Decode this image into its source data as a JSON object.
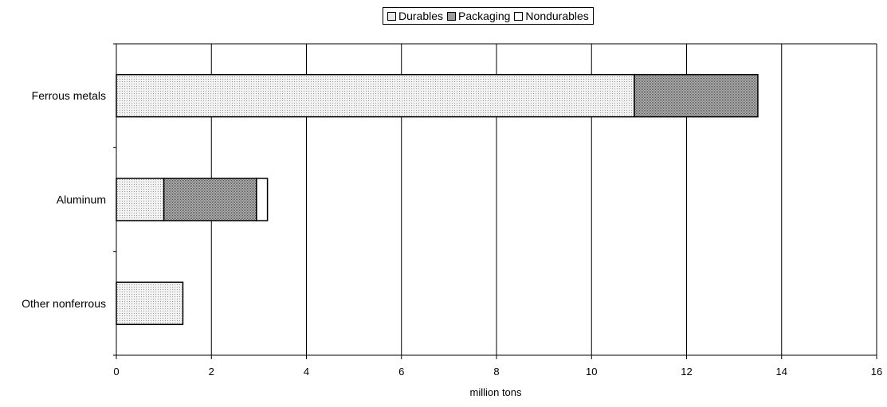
{
  "chart_data": {
    "type": "bar",
    "orientation": "horizontal",
    "stacked": true,
    "categories": [
      "Ferrous metals",
      "Aluminum",
      "Other nonferrous"
    ],
    "series": [
      {
        "name": "Durables",
        "values": [
          10.9,
          1.0,
          1.4
        ],
        "color": "#e6e6e6",
        "pattern": "light-dots"
      },
      {
        "name": "Packaging",
        "values": [
          2.6,
          1.95,
          0
        ],
        "color": "#a8a8a8",
        "pattern": "dense-dots"
      },
      {
        "name": "Nondurables",
        "values": [
          0,
          0.23,
          0
        ],
        "color": "#ffffff",
        "pattern": "none"
      }
    ],
    "xlabel": "million tons",
    "xlim": [
      0,
      16
    ],
    "xticks": [
      "0",
      "2",
      "4",
      "6",
      "8",
      "10",
      "12",
      "14",
      "16"
    ],
    "grid": true,
    "legend": "top-center"
  }
}
